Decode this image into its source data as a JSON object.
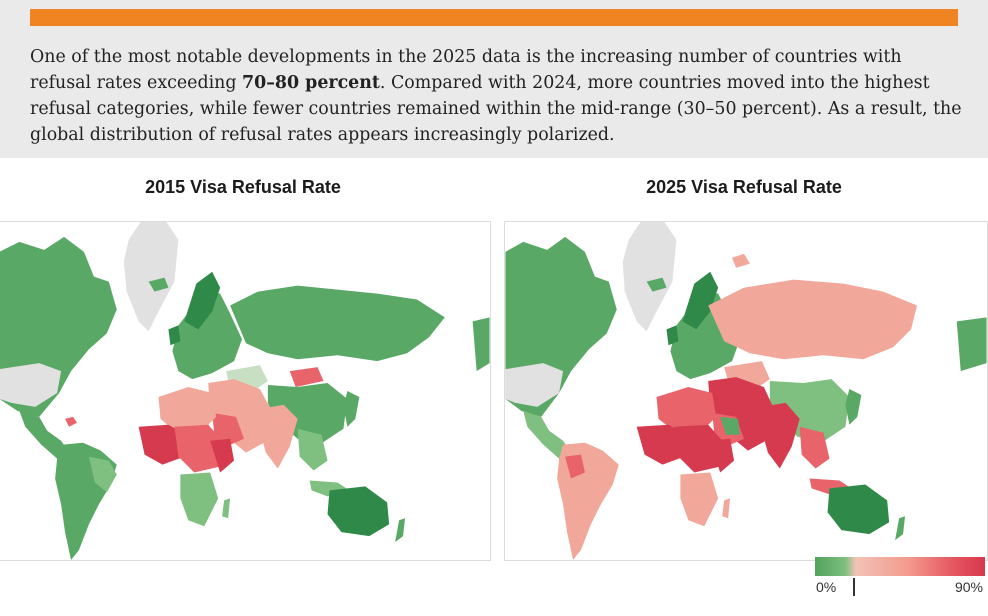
{
  "intro": {
    "part1": "One of the most notable developments in the 2025 data is the increasing number of countries with refusal rates exceeding ",
    "bold": "70–80 percent",
    "part2": ". Compared with 2024, more countries moved into the highest refusal categories, while fewer countries remained within the mid-range (30–50 percent). As a result, the global distribution of refusal rates appears increasingly polarized."
  },
  "maps": {
    "left_title": "2015 Visa Refusal Rate",
    "right_title": "2025 Visa Refusal Rate"
  },
  "legend": {
    "min_label": "0%",
    "max_label": "90%",
    "scale_min_percent": 0,
    "scale_max_percent": 90,
    "colors": [
      "#4fa35c",
      "#7fbf7f",
      "#f2c2b6",
      "#f39a8e",
      "#e55a62",
      "#d8374c"
    ]
  },
  "colors": {
    "accent": "#f08322",
    "low": "#5aa866",
    "low_light": "#8cc38f",
    "very_light": "#c8dfc3",
    "mid": "#f2a79b",
    "high": "#e8646a",
    "very_high": "#d63a4e",
    "no_data": "#e1e1e1"
  }
}
